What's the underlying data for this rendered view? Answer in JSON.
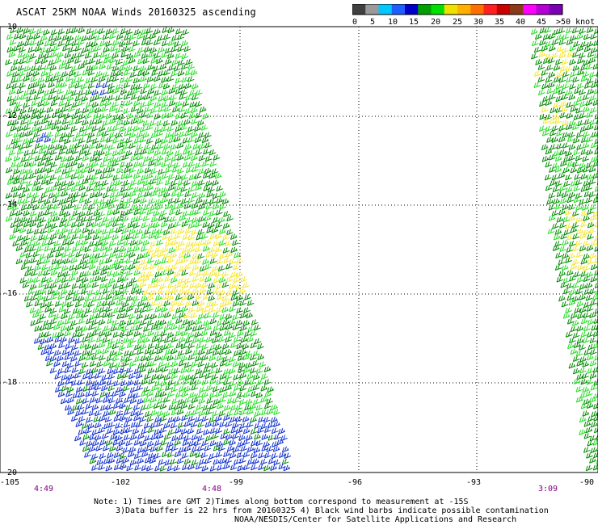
{
  "title": "ASCAT 25KM NOAA Winds 20160325 ascending",
  "colorbar": {
    "segments": [
      "#404040",
      "#9a9a9a",
      "#00c8ff",
      "#1e5eff",
      "#0000c8",
      "#00a000",
      "#00e000",
      "#f0e000",
      "#ffb000",
      "#ff7000",
      "#ff2020",
      "#c80000",
      "#8b3a1a",
      "#ff00ff",
      "#b400d2",
      "#7a00b4"
    ],
    "labels": [
      "0",
      "5",
      "10",
      "15",
      "20",
      "25",
      "30",
      "35",
      "40",
      "45",
      ">50 knots"
    ]
  },
  "map": {
    "lat_ticks": [
      "-10",
      "-12",
      "-14",
      "-16",
      "-18",
      "-20"
    ],
    "lon_ticks": [
      "-105",
      "-102",
      "-99",
      "-96",
      "-93",
      "-90"
    ],
    "time_labels": [
      "4:49",
      "4:48",
      "3:09"
    ],
    "colors": {
      "green_dark": "#008a00",
      "green_light": "#22dd22",
      "yellow": "#f5e62c",
      "blue": "#1030d0",
      "time_label": "#800080"
    }
  },
  "chart_data": {
    "type": "map",
    "region": {
      "lat_range": [
        -20,
        -10
      ],
      "lon_range": [
        -105,
        -90
      ]
    },
    "units": "knots",
    "swaths": [
      {
        "name": "swath-west",
        "time_labels": [
          "4:49",
          "4:48"
        ]
      },
      {
        "name": "swath-east",
        "time_labels": [
          "3:09"
        ]
      }
    ]
  },
  "notes": {
    "line1": "Note: 1) Times are GMT 2)Times along bottom correspond to measurement at -15S",
    "line2": "3)Data buffer is 22 hrs from 20160325 4) Black wind barbs indicate possible contamination",
    "line3": "NOAA/NESDIS/Center for Satellite Applications and Research"
  }
}
